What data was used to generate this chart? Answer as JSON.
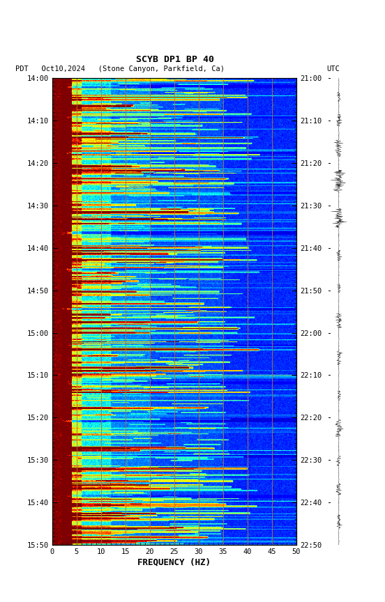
{
  "title_line1": "SCYB DP1 BP 40",
  "title_line2_left": "PDT   Oct10,2024   (Stone Canyon, Parkfield, Ca)",
  "title_line2_right": "UTC",
  "xlabel": "FREQUENCY (HZ)",
  "freq_min": 0,
  "freq_max": 50,
  "time_labels_left": [
    "14:00",
    "14:10",
    "14:20",
    "14:30",
    "14:40",
    "14:50",
    "15:00",
    "15:10",
    "15:20",
    "15:30",
    "15:40",
    "15:50"
  ],
  "time_labels_right": [
    "21:00",
    "21:10",
    "21:20",
    "21:30",
    "21:40",
    "21:50",
    "22:00",
    "22:10",
    "22:20",
    "22:30",
    "22:40",
    "22:50"
  ],
  "vertical_lines_hz": [
    5,
    10,
    15,
    20,
    25,
    30,
    35,
    40,
    45
  ],
  "background_color": "#ffffff",
  "seed": 42
}
